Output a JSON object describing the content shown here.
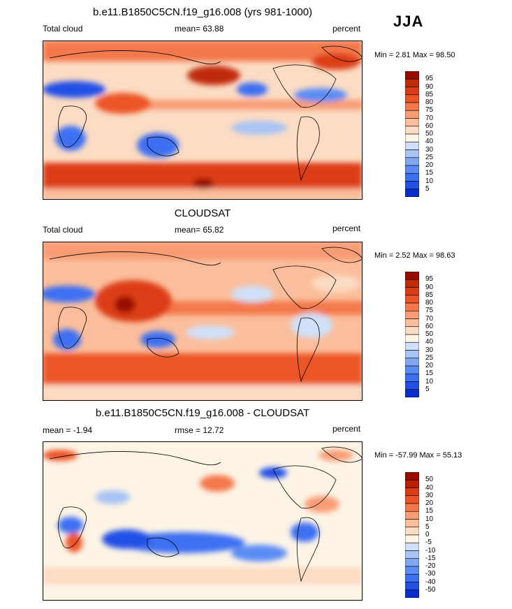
{
  "season": "JJA",
  "colors": {
    "levels": [
      "#08087e",
      "#0a2ccc",
      "#2050e6",
      "#3c70f2",
      "#5a8cf4",
      "#82a6f2",
      "#a8c4f4",
      "#d0e0f8",
      "#fdf4e6",
      "#fcdcc4",
      "#fbbe9c",
      "#f89c74",
      "#f4784c",
      "#ec5428",
      "#dc3c14",
      "#c02c08",
      "#980c00"
    ],
    "diff_levels": [
      "#08087e",
      "#0a2ccc",
      "#2050e6",
      "#3c70f2",
      "#5a8cf4",
      "#82a6f2",
      "#a8c4f4",
      "#d0e0f8",
      "#fdf4e6",
      "#fcdcc4",
      "#fbbe9c",
      "#f89c74",
      "#f4784c",
      "#ec5428",
      "#dc3c14",
      "#b82000",
      "#980c00"
    ]
  },
  "chart_data": [
    {
      "type": "heatmap",
      "title": "b.e11.B1850C5CN.f19_g16.008 (yrs 981-1000)",
      "left_label": "Total cloud",
      "center_label": "mean=  63.88",
      "units": "percent",
      "minmax": "Min =   2.81 Max =  98.50",
      "min": 2.81,
      "max": 98.5,
      "mean": 63.88,
      "colorbar_levels": [
        "95",
        "90",
        "85",
        "80",
        "75",
        "70",
        "60",
        "50",
        "40",
        "30",
        "25",
        "20",
        "15",
        "10",
        "5"
      ]
    },
    {
      "type": "heatmap",
      "title": "CLOUDSAT",
      "left_label": "Total cloud",
      "center_label": "mean=  65.82",
      "units": "percent",
      "minmax": "Min =   2.52 Max =  98.63",
      "min": 2.52,
      "max": 98.63,
      "mean": 65.82,
      "colorbar_levels": [
        "95",
        "90",
        "85",
        "80",
        "75",
        "70",
        "60",
        "50",
        "40",
        "30",
        "25",
        "20",
        "15",
        "10",
        "5"
      ]
    },
    {
      "type": "heatmap",
      "title": "b.e11.B1850C5CN.f19_g16.008 - CLOUDSAT",
      "left_label": "mean =  -1.94",
      "center_label": "rmse =  12.72",
      "units": "percent",
      "minmax": "Min = -57.99 Max =  55.13",
      "min": -57.99,
      "max": 55.13,
      "mean": -1.94,
      "rmse": 12.72,
      "colorbar_levels": [
        "50",
        "40",
        "30",
        "20",
        "15",
        "10",
        "5",
        "0",
        "-5",
        "-10",
        "-15",
        "-20",
        "-30",
        "-40",
        "-50"
      ]
    }
  ]
}
